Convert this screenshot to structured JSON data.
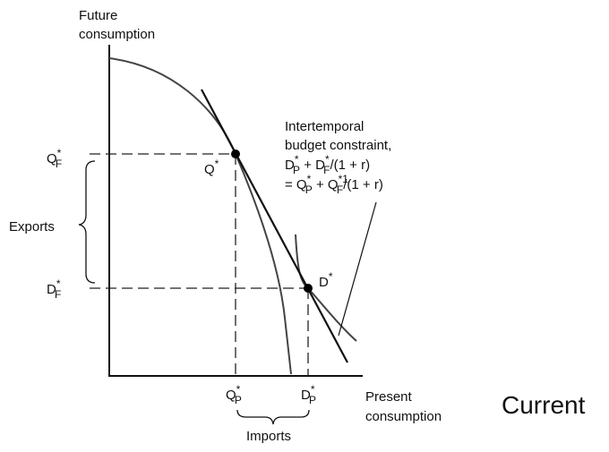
{
  "axis": {
    "y_title": [
      [
        {
          "text": "Future"
        }
      ],
      [
        {
          "text": "consumption"
        }
      ]
    ],
    "x_title": [
      [
        {
          "text": "Present"
        }
      ],
      [
        {
          "text": "consumption"
        }
      ]
    ]
  },
  "labels": {
    "q_f": [
      {
        "text": "Q"
      },
      {
        "sup": "*"
      },
      {
        "sub": "F"
      }
    ],
    "d_f": [
      {
        "text": "D"
      },
      {
        "sup": "*"
      },
      {
        "sub": "F"
      }
    ],
    "q_star": [
      {
        "text": "Q"
      },
      {
        "sup": "*"
      }
    ],
    "d_star": [
      {
        "text": "D"
      },
      {
        "sup": "*"
      }
    ],
    "q_p": [
      {
        "text": "Q"
      },
      {
        "sup": "*"
      },
      {
        "sub": "P"
      }
    ],
    "d_p": [
      {
        "text": "D"
      },
      {
        "sup": "*"
      },
      {
        "sub": "P"
      }
    ],
    "exports": [
      {
        "text": "Exports"
      }
    ],
    "imports": [
      {
        "text": "Imports"
      }
    ]
  },
  "constraint": {
    "lines": [
      [
        {
          "text": "Intertemporal"
        }
      ],
      [
        {
          "text": "budget constraint,"
        }
      ],
      [
        {
          "text": "D"
        },
        {
          "sup": "*"
        },
        {
          "sub": "P"
        },
        {
          "text": " + D"
        },
        {
          "sup": "*"
        },
        {
          "sub": "F"
        },
        {
          "text": "/(1 + r)"
        }
      ],
      [
        {
          "text": "= Q"
        },
        {
          "sup": "*"
        },
        {
          "sub": "P"
        },
        {
          "text": "  + Q"
        },
        {
          "sup": "*1"
        },
        {
          "sub": "F"
        },
        {
          "text": "/(1 + r)"
        }
      ]
    ]
  },
  "side_label": [
    {
      "text": "Current"
    }
  ]
}
